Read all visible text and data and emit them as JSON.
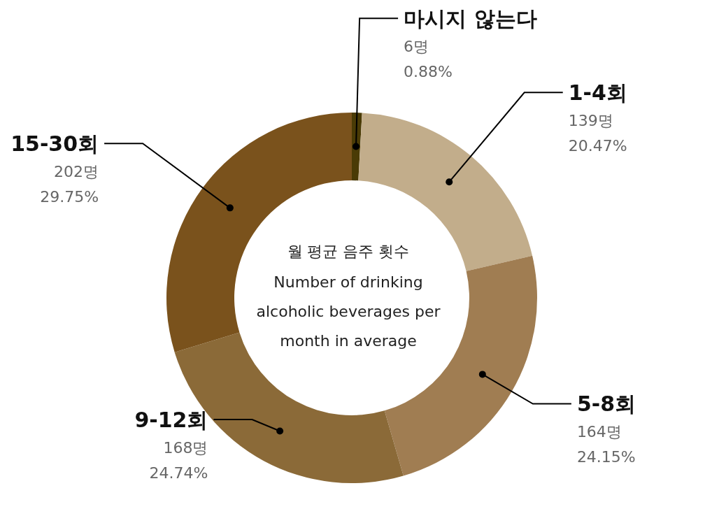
{
  "chart_data": {
    "type": "donut",
    "title": "월 평균 음주 횟수",
    "subtitle": "Number of drinking alcoholic beverages per month in average",
    "categories": [
      "마시지 않는다",
      "1-4회",
      "5-8회",
      "9-12회",
      "15-30회"
    ],
    "values": [
      6,
      139,
      164,
      168,
      202
    ],
    "value_labels": [
      "6명\n0.88%",
      "139명\n20.47%",
      "164명\n24.15%",
      "168명\n24.74%",
      "202명\n29.75%"
    ],
    "colors": [
      "#4a3b06",
      "#c2ad8b",
      "#a07d52",
      "#8b6a38",
      "#7a521c"
    ]
  }
}
